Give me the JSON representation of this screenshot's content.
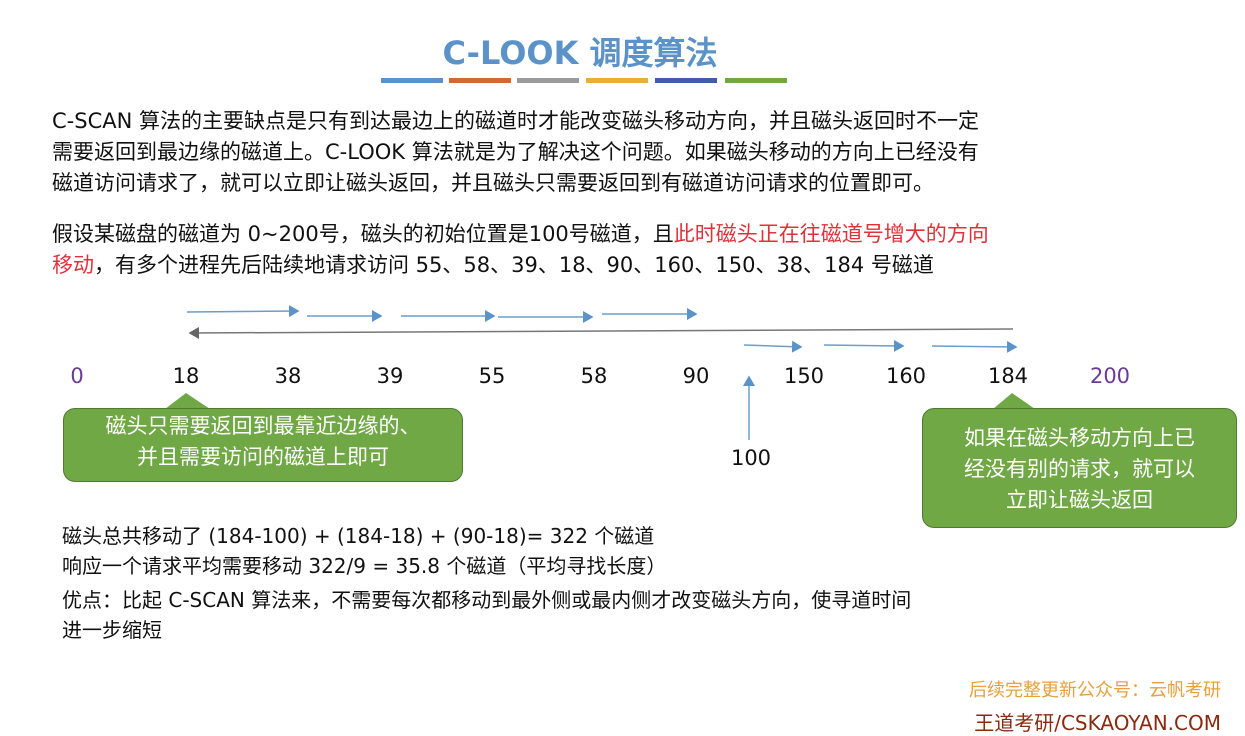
{
  "title": "C-LOOK 调度算法",
  "title_bar_colors": [
    "#5b93c8",
    "#d0693a",
    "#9a9a9a",
    "#e8b030",
    "#3e5fa6",
    "#6fa843"
  ],
  "intro": [
    "C-SCAN 算法的主要缺点是只有到达最边上的磁道时才能改变磁头移动方向，并且磁头返回时不一定",
    "需要返回到最边缘的磁道上。C-LOOK 算法就是为了解决这个问题。如果磁头移动的方向上已经没有",
    "磁道访问请求了，就可以立即让磁头返回，并且磁头只需要返回到有磁道访问请求的位置即可。"
  ],
  "example": {
    "line1_a": "假设某磁盘的磁道为 0~200号，磁头的初始位置是100号磁道，且",
    "line1_red": "此时磁头正在往磁道号增大的方向",
    "line2_red": "移动",
    "line2_b": "，有多个进程先后陆续地请求访问 55、58、39、18、90、160、150、38、184 号磁道"
  },
  "track_labels": [
    "0",
    "18",
    "38",
    "39",
    "55",
    "58",
    "90",
    "150",
    "160",
    "184",
    "200"
  ],
  "start_label": "100",
  "callout_left": [
    "磁头只需要返回到最靠近边缘的、",
    "并且需要访问的磁道上即可"
  ],
  "callout_right": [
    "如果在磁头移动方向上已",
    "经没有别的请求，就可以",
    "立即让磁头返回"
  ],
  "summary": [
    "磁头总共移动了  (184-100) + (184-18) + (90-18)= 322 个磁道",
    "响应一个请求平均需要移动 322/9 = 35.8 个磁道（平均寻找长度）",
    "优点：比起 C-SCAN 算法来，不需要每次都移动到最外侧或最内侧才改变磁头方向，使寻道时间",
    "进一步缩短"
  ],
  "footer": {
    "wechat": "后续完整更新公众号：云帆考研",
    "site": "王道考研/CSKAOYAN.COM"
  }
}
